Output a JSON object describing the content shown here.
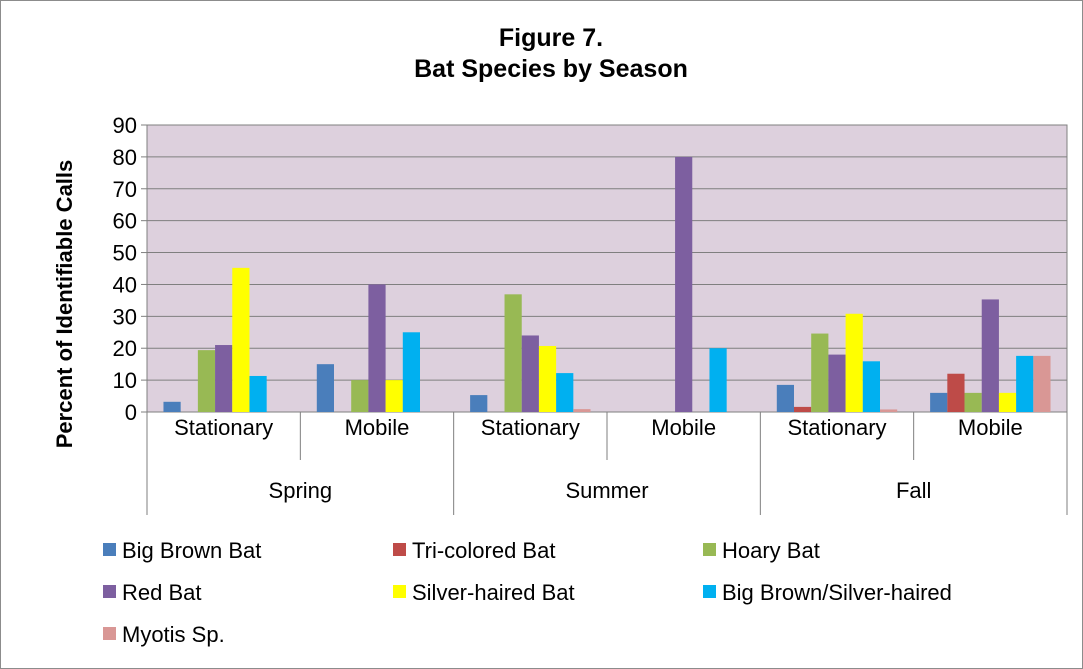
{
  "chart_data": {
    "type": "bar",
    "title": "Figure 7.",
    "subtitle": "Bat Species by Season",
    "ylabel": "Percent of Identifiable Calls",
    "xlabel": "",
    "ylim": [
      0,
      90
    ],
    "yticks": [
      0,
      10,
      20,
      30,
      40,
      50,
      60,
      70,
      80,
      90
    ],
    "grid": true,
    "plot_background": "#ddd0dd",
    "legend_position": "bottom",
    "groups": [
      {
        "label": "Spring",
        "categories": [
          "Stationary",
          "Mobile"
        ]
      },
      {
        "label": "Summer",
        "categories": [
          "Stationary",
          "Mobile"
        ]
      },
      {
        "label": "Fall",
        "categories": [
          "Stationary",
          "Mobile"
        ]
      }
    ],
    "categories": [
      "Stationary",
      "Mobile",
      "Stationary",
      "Mobile",
      "Stationary",
      "Mobile"
    ],
    "series": [
      {
        "name": "Big Brown Bat",
        "color": "#4a7ebb",
        "values": [
          3.2,
          15,
          5.3,
          0,
          8.5,
          6
        ]
      },
      {
        "name": "Tri-colored Bat",
        "color": "#be4b48",
        "values": [
          0,
          0,
          0,
          0,
          1.6,
          12
        ]
      },
      {
        "name": "Hoary Bat",
        "color": "#98b954",
        "values": [
          19.4,
          10,
          36.9,
          0,
          24.6,
          6
        ]
      },
      {
        "name": "Red Bat",
        "color": "#7d5fa0",
        "values": [
          21,
          40,
          24,
          80,
          18,
          35.3
        ]
      },
      {
        "name": "Silver-haired Bat",
        "color": "#ffff00",
        "values": [
          45.2,
          10,
          20.7,
          0,
          30.8,
          6
        ]
      },
      {
        "name": "Big Brown/Silver-haired",
        "color": "#00b0f0",
        "values": [
          11.3,
          25,
          12.2,
          20,
          15.9,
          17.6
        ]
      },
      {
        "name": "Myotis Sp.",
        "color": "#d99795",
        "values": [
          0,
          0,
          0.9,
          0,
          0.8,
          17.6
        ]
      }
    ]
  }
}
